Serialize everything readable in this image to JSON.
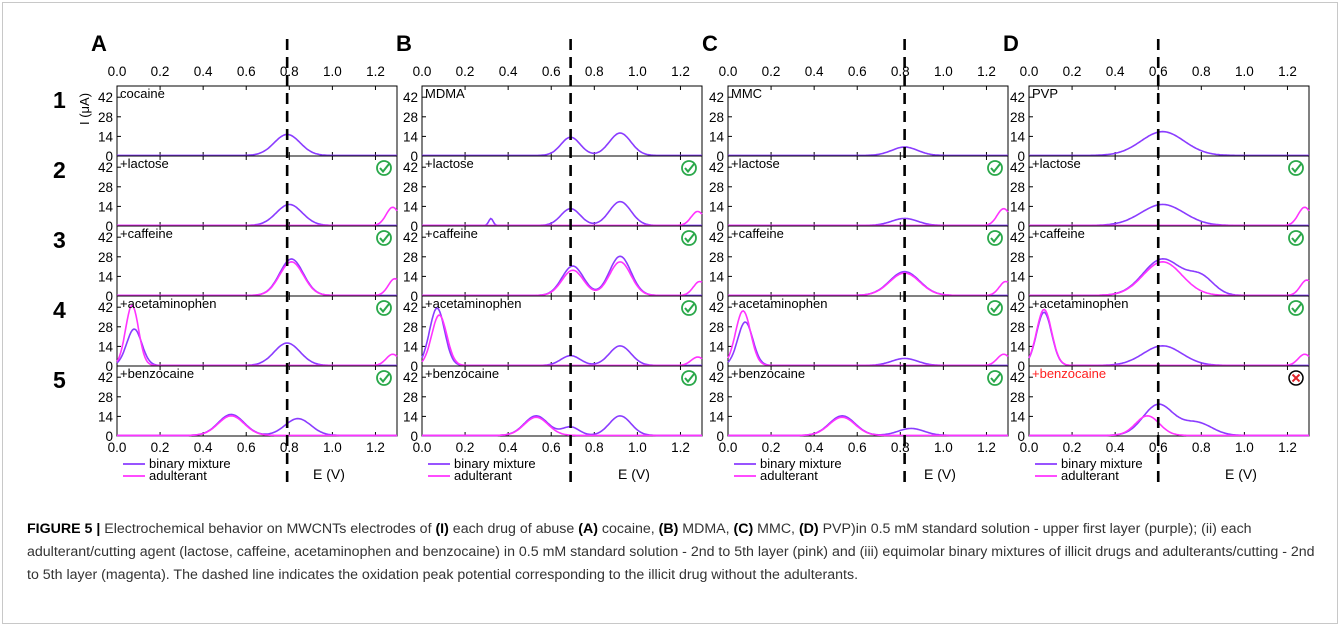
{
  "figure": {
    "panel_letters": [
      "A",
      "B",
      "C",
      "D"
    ],
    "row_numbers": [
      "1",
      "2",
      "3",
      "4",
      "5"
    ],
    "colors": {
      "binary_mixture": "#8a3cff",
      "adulterant": "#ff33ff",
      "dashed_line": "#000000",
      "check": "#2aa84a",
      "cross": "#e0242a",
      "failed_label": "#ff2020"
    }
  },
  "chart_data": {
    "type": "line",
    "x_ticks": [
      "0.0",
      "0.2",
      "0.4",
      "0.6",
      "0.8",
      "1.0",
      "1.2"
    ],
    "y_ticks": [
      "0",
      "14",
      "28",
      "42"
    ],
    "xlim": [
      0.0,
      1.3
    ],
    "ylim": [
      0,
      50
    ],
    "xlabel": "E (V)",
    "ylabel": "I (μA)",
    "legend": [
      "binary mixture",
      "adulterant"
    ],
    "legend_position": "bottom-left",
    "panels": [
      {
        "letter": "A",
        "drug": "cocaine",
        "dashed_line_E": 0.79,
        "rows": [
          {
            "label": "cocaine",
            "status": "none",
            "curves": [
              {
                "series": "binary mixture",
                "peaks": [
                  [
                    0.79,
                    15,
                    0.06
                  ]
                ]
              }
            ]
          },
          {
            "label": "+lactose",
            "status": "check",
            "curves": [
              {
                "series": "binary mixture",
                "peaks": [
                  [
                    0.8,
                    15,
                    0.06
                  ]
                ]
              },
              {
                "series": "adulterant",
                "peaks": [
                  [
                    1.28,
                    13,
                    0.03
                  ]
                ]
              }
            ]
          },
          {
            "label": "+caffeine",
            "status": "check",
            "curves": [
              {
                "series": "binary mixture",
                "peaks": [
                  [
                    0.81,
                    26,
                    0.055
                  ]
                ]
              },
              {
                "series": "adulterant",
                "peaks": [
                  [
                    0.81,
                    24,
                    0.055
                  ],
                  [
                    1.29,
                    12,
                    0.03
                  ]
                ]
              }
            ]
          },
          {
            "label": "+acetaminophen",
            "status": "check",
            "curves": [
              {
                "series": "binary mixture",
                "peaks": [
                  [
                    0.08,
                    26,
                    0.035
                  ],
                  [
                    0.79,
                    16,
                    0.06
                  ]
                ]
              },
              {
                "series": "adulterant",
                "peaks": [
                  [
                    0.07,
                    43,
                    0.03
                  ],
                  [
                    1.28,
                    8,
                    0.03
                  ]
                ]
              }
            ]
          },
          {
            "label": "+benzocaine",
            "status": "check",
            "curves": [
              {
                "series": "binary mixture",
                "peaks": [
                  [
                    0.53,
                    15,
                    0.06
                  ],
                  [
                    0.84,
                    12,
                    0.06
                  ]
                ]
              },
              {
                "series": "adulterant",
                "peaks": [
                  [
                    0.53,
                    14,
                    0.06
                  ]
                ]
              }
            ]
          }
        ]
      },
      {
        "letter": "B",
        "drug": "MDMA",
        "dashed_line_E": 0.69,
        "rows": [
          {
            "label": "MDMA",
            "status": "none",
            "curves": [
              {
                "series": "binary mixture",
                "peaks": [
                  [
                    0.69,
                    13,
                    0.045
                  ],
                  [
                    0.92,
                    16,
                    0.05
                  ]
                ]
              }
            ]
          },
          {
            "label": "+lactose",
            "status": "check",
            "curves": [
              {
                "series": "binary mixture",
                "peaks": [
                  [
                    0.69,
                    12,
                    0.045
                  ],
                  [
                    0.92,
                    17,
                    0.05
                  ],
                  [
                    0.32,
                    5,
                    0.01
                  ]
                ]
              },
              {
                "series": "adulterant",
                "peaks": [
                  [
                    1.28,
                    10,
                    0.03
                  ]
                ]
              }
            ]
          },
          {
            "label": "+caffeine",
            "status": "check",
            "curves": [
              {
                "series": "binary mixture",
                "peaks": [
                  [
                    0.7,
                    21,
                    0.05
                  ],
                  [
                    0.92,
                    28,
                    0.05
                  ]
                ]
              },
              {
                "series": "adulterant",
                "peaks": [
                  [
                    0.7,
                    18,
                    0.05
                  ],
                  [
                    0.92,
                    24,
                    0.05
                  ],
                  [
                    1.29,
                    10,
                    0.03
                  ]
                ]
              }
            ]
          },
          {
            "label": "+acetaminophen",
            "status": "check",
            "curves": [
              {
                "series": "binary mixture",
                "peaks": [
                  [
                    0.07,
                    41,
                    0.035
                  ],
                  [
                    0.69,
                    7,
                    0.045
                  ],
                  [
                    0.92,
                    14,
                    0.05
                  ]
                ]
              },
              {
                "series": "adulterant",
                "peaks": [
                  [
                    0.08,
                    36,
                    0.035
                  ],
                  [
                    1.28,
                    6,
                    0.03
                  ]
                ]
              }
            ]
          },
          {
            "label": "+benzocaine",
            "status": "check",
            "curves": [
              {
                "series": "binary mixture",
                "peaks": [
                  [
                    0.53,
                    14,
                    0.055
                  ],
                  [
                    0.69,
                    6,
                    0.04
                  ],
                  [
                    0.92,
                    14,
                    0.05
                  ]
                ]
              },
              {
                "series": "adulterant",
                "peaks": [
                  [
                    0.53,
                    13,
                    0.055
                  ]
                ]
              }
            ]
          }
        ]
      },
      {
        "letter": "C",
        "drug": "MMC",
        "dashed_line_E": 0.82,
        "rows": [
          {
            "label": "MMC",
            "status": "none",
            "curves": [
              {
                "series": "binary mixture",
                "peaks": [
                  [
                    0.82,
                    6,
                    0.06
                  ]
                ]
              }
            ]
          },
          {
            "label": "+lactose",
            "status": "check",
            "curves": [
              {
                "series": "binary mixture",
                "peaks": [
                  [
                    0.82,
                    5,
                    0.06
                  ]
                ]
              },
              {
                "series": "adulterant",
                "peaks": [
                  [
                    1.28,
                    12,
                    0.03
                  ]
                ]
              }
            ]
          },
          {
            "label": "+caffeine",
            "status": "check",
            "curves": [
              {
                "series": "binary mixture",
                "peaks": [
                  [
                    0.82,
                    17,
                    0.07
                  ]
                ]
              },
              {
                "series": "adulterant",
                "peaks": [
                  [
                    0.82,
                    16,
                    0.07
                  ],
                  [
                    1.29,
                    10,
                    0.03
                  ]
                ]
              }
            ]
          },
          {
            "label": "+acetaminophen",
            "status": "check",
            "curves": [
              {
                "series": "binary mixture",
                "peaks": [
                  [
                    0.08,
                    31,
                    0.035
                  ],
                  [
                    0.82,
                    5,
                    0.06
                  ]
                ]
              },
              {
                "series": "adulterant",
                "peaks": [
                  [
                    0.07,
                    39,
                    0.035
                  ],
                  [
                    1.28,
                    8,
                    0.03
                  ]
                ]
              }
            ]
          },
          {
            "label": "+benzocaine",
            "status": "check",
            "curves": [
              {
                "series": "binary mixture",
                "peaks": [
                  [
                    0.53,
                    14,
                    0.06
                  ],
                  [
                    0.85,
                    5,
                    0.06
                  ]
                ]
              },
              {
                "series": "adulterant",
                "peaks": [
                  [
                    0.53,
                    13,
                    0.06
                  ]
                ]
              }
            ]
          }
        ]
      },
      {
        "letter": "D",
        "drug": "PVP",
        "dashed_line_E": 0.6,
        "rows": [
          {
            "label": "PVP",
            "status": "none",
            "curves": [
              {
                "series": "binary mixture",
                "peaks": [
                  [
                    0.62,
                    17,
                    0.1
                  ]
                ]
              }
            ]
          },
          {
            "label": "+lactose",
            "status": "check",
            "curves": [
              {
                "series": "binary mixture",
                "peaks": [
                  [
                    0.62,
                    15,
                    0.1
                  ]
                ]
              },
              {
                "series": "adulterant",
                "peaks": [
                  [
                    1.28,
                    13,
                    0.03
                  ]
                ]
              }
            ]
          },
          {
            "label": "+caffeine",
            "status": "check",
            "curves": [
              {
                "series": "binary mixture",
                "peaks": [
                  [
                    0.62,
                    26,
                    0.09
                  ],
                  [
                    0.8,
                    12,
                    0.06
                  ]
                ]
              },
              {
                "series": "adulterant",
                "peaks": [
                  [
                    0.62,
                    24,
                    0.09
                  ],
                  [
                    1.29,
                    11,
                    0.03
                  ]
                ]
              }
            ]
          },
          {
            "label": "+acetaminophen",
            "status": "check",
            "curves": [
              {
                "series": "binary mixture",
                "peaks": [
                  [
                    0.07,
                    38,
                    0.035
                  ],
                  [
                    0.62,
                    14,
                    0.09
                  ]
                ]
              },
              {
                "series": "adulterant",
                "peaks": [
                  [
                    0.07,
                    40,
                    0.035
                  ],
                  [
                    1.28,
                    8,
                    0.03
                  ]
                ]
              }
            ]
          },
          {
            "label": "+benzocaine",
            "status": "cross",
            "curves": [
              {
                "series": "binary mixture",
                "peaks": [
                  [
                    0.6,
                    22,
                    0.07
                  ],
                  [
                    0.78,
                    9,
                    0.07
                  ]
                ]
              },
              {
                "series": "adulterant",
                "peaks": [
                  [
                    0.55,
                    14,
                    0.055
                  ]
                ]
              }
            ]
          }
        ]
      }
    ]
  },
  "caption": {
    "figure_label": "FIGURE 5 |",
    "t1": " Electrochemical behavior on MWCNTs electrodes of ",
    "b1": "(I)",
    "t2": " each drug of abuse ",
    "b2": "(A)",
    "t3": " cocaine, ",
    "b3": "(B)",
    "t4": " MDMA, ",
    "b4": "(C)",
    "t5": " MMC, ",
    "b5": "(D)",
    "t6": " PVP)in 0.5 mM standard solution - upper first layer (purple); (ii) each adulterant/cutting agent (lactose, caffeine, acetaminophen and benzocaine) in 0.5 mM standard solution - 2nd to 5th layer (pink) and (iii) equimolar binary mixtures of illicit drugs and adulterants/cutting - 2nd to 5th layer (magenta). The dashed line indicates the oxidation peak potential corresponding to the illicit drug without the adulterants."
  }
}
